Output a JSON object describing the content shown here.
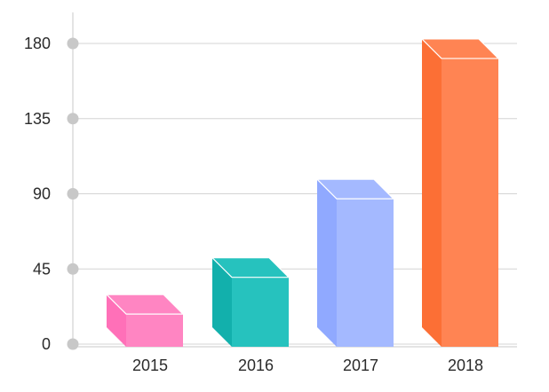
{
  "chart_data": {
    "type": "bar",
    "title": "",
    "xlabel": "",
    "ylabel": "",
    "categories": [
      "2015",
      "2016",
      "2017",
      "2018"
    ],
    "values": [
      18,
      40,
      87,
      171
    ],
    "ylim": [
      0,
      180
    ],
    "yticks": [
      0,
      45,
      90,
      135,
      180
    ],
    "ytick_labels": [
      "0",
      "45",
      "90",
      "135",
      "180"
    ],
    "grid": true,
    "legend": "none",
    "style": "3d-bar",
    "bar_colors": [
      {
        "front": "#ff85c2",
        "side": "#ff70b8",
        "top": "#ff85c2"
      },
      {
        "front": "#26c2be",
        "side": "#12b0ac",
        "top": "#26c2be"
      },
      {
        "front": "#a4b9ff",
        "side": "#90a9ff",
        "top": "#a4b9ff"
      },
      {
        "front": "#ff8453",
        "side": "#fc6f35",
        "top": "#ff8453"
      }
    ],
    "grid_color": "#d4d4d4",
    "axis_color": "#c9c9c9",
    "marker_color": "#c8c8c8"
  }
}
